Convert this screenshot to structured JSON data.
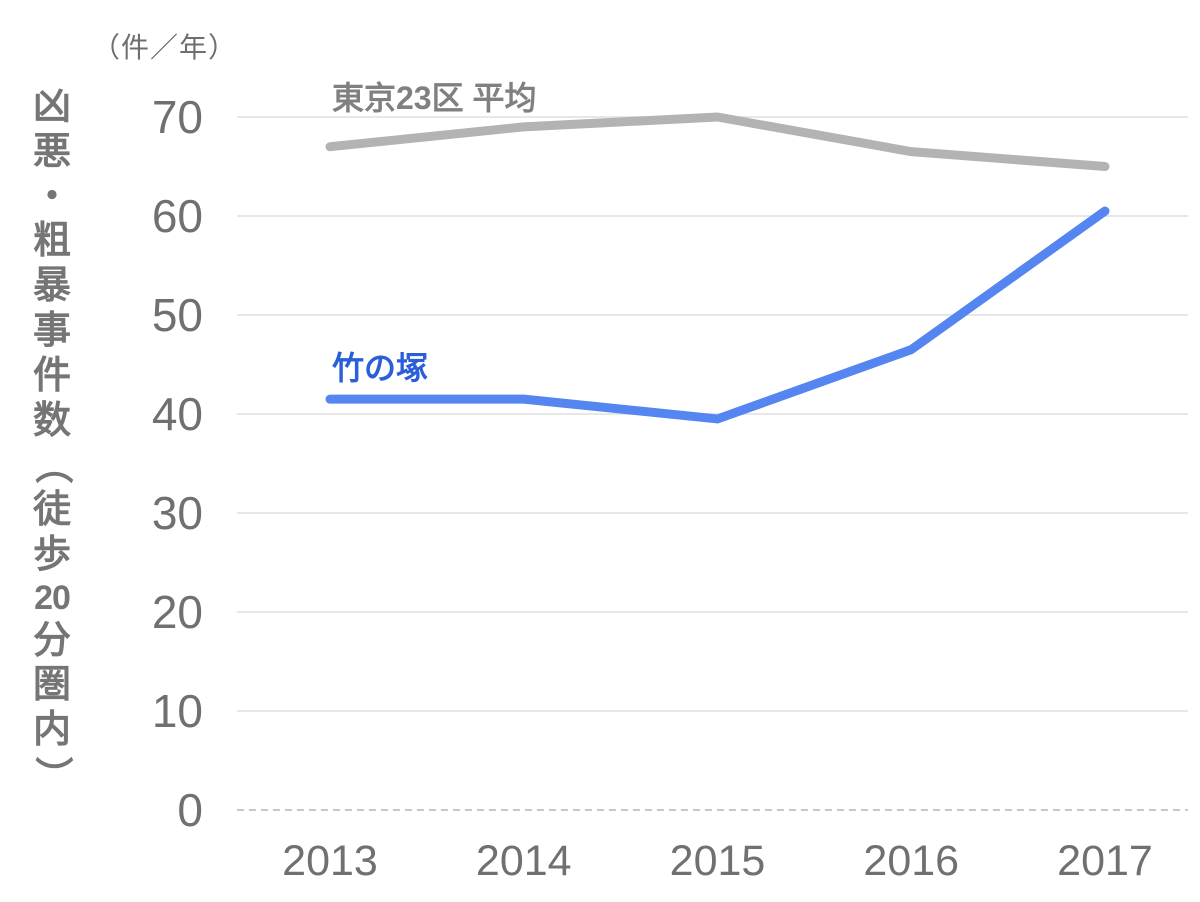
{
  "axis_unit": "（件／年）",
  "y_axis_title": "凶悪・粗暴事件数（徒歩20分圏内）",
  "colors": {
    "grid": "#e7e7e7",
    "zero_line": "#c8c8c8",
    "tick_text": "#707070",
    "axis_title_text": "#757575"
  },
  "chart_data": {
    "type": "line",
    "x": [
      "2013",
      "2014",
      "2015",
      "2016",
      "2017"
    ],
    "series": [
      {
        "name": "東京23区 平均",
        "values": [
          67,
          69,
          70,
          66.5,
          65
        ],
        "color": "#b3b3b3",
        "label_color": "#808080"
      },
      {
        "name": "竹の塚",
        "values": [
          41.5,
          41.5,
          39.5,
          46.5,
          60.5
        ],
        "color": "#5585f0",
        "label_color": "#2b5fd9"
      }
    ],
    "title": "",
    "xlabel": "",
    "ylabel": "凶悪・粗暴事件数（徒歩20分圏内）",
    "yticks": [
      0,
      10,
      20,
      30,
      40,
      50,
      60,
      70
    ],
    "ylim": [
      0,
      70
    ],
    "grid": true,
    "legend_position": "inline-labels-near-lines"
  }
}
